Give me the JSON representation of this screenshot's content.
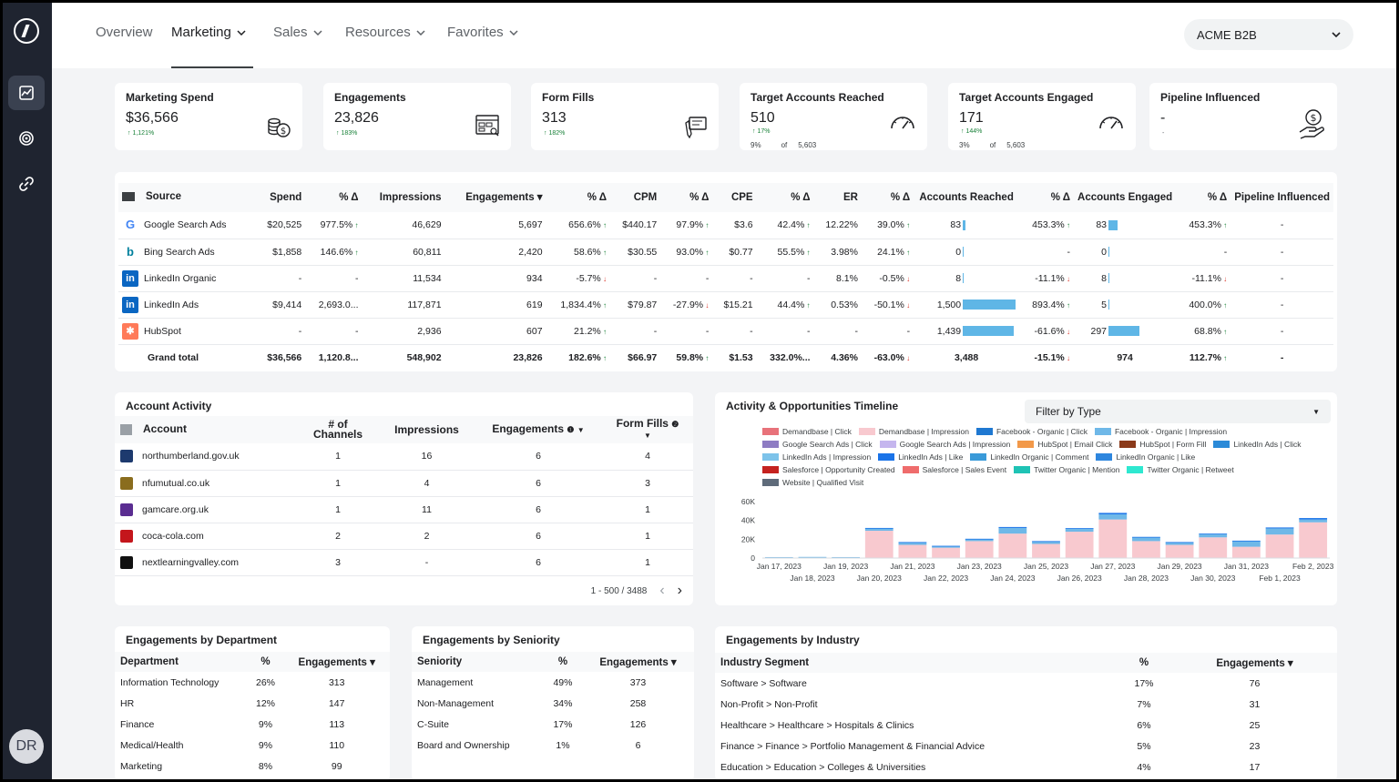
{
  "sidebar": {
    "avatar_initials": "DR",
    "icons": [
      "chart-icon",
      "target-icon",
      "link-icon"
    ]
  },
  "topnav": {
    "items": [
      {
        "label": "Overview",
        "dropdown": false
      },
      {
        "label": "Marketing",
        "dropdown": true,
        "active": true
      },
      {
        "label": "Sales",
        "dropdown": true
      },
      {
        "label": "Resources",
        "dropdown": true
      },
      {
        "label": "Favorites",
        "dropdown": true
      }
    ],
    "account_selector": "ACME B2B"
  },
  "kpis": [
    {
      "title": "Marketing Spend",
      "value": "$36,566",
      "delta": "1,121%",
      "icon": "coins-icon"
    },
    {
      "title": "Engagements",
      "value": "23,826",
      "delta": "183%",
      "icon": "dashboard-icon"
    },
    {
      "title": "Form Fills",
      "value": "313",
      "delta": "182%",
      "icon": "form-icon"
    },
    {
      "title": "Target Accounts Reached",
      "value": "510",
      "delta": "17%",
      "sub_pct": "9%",
      "sub_of": "of",
      "sub_total": "5,603",
      "icon": "gauge-icon"
    },
    {
      "title": "Target Accounts Engaged",
      "value": "171",
      "delta": "144%",
      "sub_pct": "3%",
      "sub_of": "of",
      "sub_total": "5,603",
      "icon": "gauge-icon"
    },
    {
      "title": "Pipeline Influenced",
      "value": "-",
      "delta": "-",
      "icon": "money-hand-icon"
    }
  ],
  "source_table": {
    "headers": [
      "Source",
      "Spend",
      "% Δ",
      "Impressions",
      "Engagements ▾",
      "% Δ",
      "CPM",
      "% Δ",
      "CPE",
      "% Δ",
      "ER",
      "% Δ",
      "Accounts Reached",
      "% Δ",
      "Accounts Engaged",
      "% Δ",
      "Pipeline Influenced"
    ],
    "rows": [
      {
        "source": "Google Search Ads",
        "icon": "google",
        "spend": "$20,525",
        "spend_d": "977.5%",
        "spend_dir": "up",
        "impr": "46,629",
        "eng": "5,697",
        "eng_d": "656.6%",
        "eng_dir": "up",
        "cpm": "$440.17",
        "cpm_d": "97.9%",
        "cpm_dir": "up",
        "cpe": "$3.6",
        "cpe_d": "42.4%",
        "cpe_dir": "up",
        "er": "12.22%",
        "er_d": "39.0%",
        "er_dir": "up",
        "reached": "83",
        "reached_bar": 83,
        "reached_d": "453.3%",
        "reached_dir": "up",
        "engaged": "83",
        "engaged_bar": 83,
        "engaged_d": "453.3%",
        "engaged_dir": "up",
        "pipeline": "-"
      },
      {
        "source": "Bing Search Ads",
        "icon": "bing",
        "spend": "$1,858",
        "spend_d": "146.6%",
        "spend_dir": "up",
        "impr": "60,811",
        "eng": "2,420",
        "eng_d": "58.6%",
        "eng_dir": "up",
        "cpm": "$30.55",
        "cpm_d": "93.0%",
        "cpm_dir": "up",
        "cpe": "$0.77",
        "cpe_d": "55.5%",
        "cpe_dir": "up",
        "er": "3.98%",
        "er_d": "24.1%",
        "er_dir": "up",
        "reached": "0",
        "reached_bar": 0,
        "reached_d": "-",
        "reached_dir": "",
        "engaged": "0",
        "engaged_bar": 0,
        "engaged_d": "-",
        "engaged_dir": "",
        "pipeline": "-"
      },
      {
        "source": "LinkedIn Organic",
        "icon": "linkedin",
        "spend": "-",
        "spend_d": "-",
        "spend_dir": "",
        "impr": "11,534",
        "eng": "934",
        "eng_d": "-5.7%",
        "eng_dir": "down",
        "cpm": "-",
        "cpm_d": "-",
        "cpm_dir": "",
        "cpe": "-",
        "cpe_d": "-",
        "cpe_dir": "",
        "er": "8.1%",
        "er_d": "-0.5%",
        "er_dir": "down",
        "reached": "8",
        "reached_bar": 8,
        "reached_d": "-11.1%",
        "reached_dir": "down",
        "engaged": "8",
        "engaged_bar": 8,
        "engaged_d": "-11.1%",
        "engaged_dir": "down",
        "pipeline": "-"
      },
      {
        "source": "LinkedIn Ads",
        "icon": "linkedin",
        "spend": "$9,414",
        "spend_d": "2,693.0...",
        "spend_dir": "",
        "impr": "117,871",
        "eng": "619",
        "eng_d": "1,834.4%",
        "eng_dir": "up",
        "cpm": "$79.87",
        "cpm_d": "-27.9%",
        "cpm_dir": "down",
        "cpe": "$15.21",
        "cpe_d": "44.4%",
        "cpe_dir": "up",
        "er": "0.53%",
        "er_d": "-50.1%",
        "er_dir": "down",
        "reached": "1,500",
        "reached_bar": 1500,
        "reached_d": "893.4%",
        "reached_dir": "up",
        "engaged": "5",
        "engaged_bar": 5,
        "engaged_d": "400.0%",
        "engaged_dir": "up",
        "pipeline": "-"
      },
      {
        "source": "HubSpot",
        "icon": "hubspot",
        "spend": "-",
        "spend_d": "-",
        "spend_dir": "",
        "impr": "2,936",
        "eng": "607",
        "eng_d": "21.2%",
        "eng_dir": "up",
        "cpm": "-",
        "cpm_d": "-",
        "cpm_dir": "",
        "cpe": "-",
        "cpe_d": "-",
        "cpe_dir": "",
        "er": "-",
        "er_d": "-",
        "er_dir": "",
        "reached": "1,439",
        "reached_bar": 1439,
        "reached_d": "-61.6%",
        "reached_dir": "down",
        "engaged": "297",
        "engaged_bar": 297,
        "engaged_d": "68.8%",
        "engaged_dir": "up",
        "pipeline": "-"
      }
    ],
    "total": {
      "source": "Grand total",
      "spend": "$36,566",
      "spend_d": "1,120.8...",
      "impr": "548,902",
      "eng": "23,826",
      "eng_d": "182.6%",
      "cpm": "$66.97",
      "cpm_d": "59.8%",
      "cpe": "$1.53",
      "cpe_d": "332.0%...",
      "er": "4.36%",
      "er_d": "-63.0%",
      "reached": "3,488",
      "reached_d": "-15.1%",
      "engaged": "974",
      "engaged_d": "112.7%",
      "pipeline": "-"
    }
  },
  "account_activity": {
    "title": "Account Activity",
    "headers": [
      "Account",
      "# of Channels",
      "Impressions",
      "Engagements",
      "Form Fills"
    ],
    "rows": [
      {
        "account": "northumberland.gov.uk",
        "channels": "1",
        "impressions": "16",
        "engagements": "6",
        "form_fills": "4",
        "color": "#1d3a6e"
      },
      {
        "account": "nfumutual.co.uk",
        "channels": "1",
        "impressions": "4",
        "engagements": "6",
        "form_fills": "3",
        "color": "#8a6d1e"
      },
      {
        "account": "gamcare.org.uk",
        "channels": "1",
        "impressions": "11",
        "engagements": "6",
        "form_fills": "1",
        "color": "#5a2d91"
      },
      {
        "account": "coca-cola.com",
        "channels": "2",
        "impressions": "2",
        "engagements": "6",
        "form_fills": "1",
        "color": "#c4161c"
      },
      {
        "account": "nextlearningvalley.com",
        "channels": "3",
        "impressions": "-",
        "engagements": "6",
        "form_fills": "1",
        "color": "#111111"
      }
    ],
    "pager": "1 - 500 / 3488"
  },
  "timeline": {
    "title": "Activity & Opportunities Timeline",
    "filter_label": "Filter by Type",
    "legend": [
      {
        "name": "Demandbase | Click",
        "color": "#e8727a"
      },
      {
        "name": "Demandbase | Impression",
        "color": "#f8c9cf"
      },
      {
        "name": "Facebook - Organic | Click",
        "color": "#1f78d1"
      },
      {
        "name": "Facebook - Organic | Impression",
        "color": "#6fb8e8"
      },
      {
        "name": "Google Search Ads | Click",
        "color": "#8e7cc3"
      },
      {
        "name": "Google Search Ads | Impression",
        "color": "#c5b6ee"
      },
      {
        "name": "HubSpot | Email Click",
        "color": "#f2994a"
      },
      {
        "name": "HubSpot | Form Fill",
        "color": "#8b3a1a"
      },
      {
        "name": "LinkedIn Ads | Click",
        "color": "#2b8ad8"
      },
      {
        "name": "LinkedIn Ads | Impression",
        "color": "#7dc3ea"
      },
      {
        "name": "LinkedIn Ads | Like",
        "color": "#1a73e8"
      },
      {
        "name": "LinkedIn Organic | Comment",
        "color": "#3a9ad9"
      },
      {
        "name": "LinkedIn Organic | Like",
        "color": "#2e86de"
      },
      {
        "name": "Salesforce | Opportunity Created",
        "color": "#c5221f"
      },
      {
        "name": "Salesforce | Sales Event",
        "color": "#ef6c6c"
      },
      {
        "name": "Twitter Organic | Mention",
        "color": "#1fc3b5"
      },
      {
        "name": "Twitter Organic | Retweet",
        "color": "#2ee8d0"
      },
      {
        "name": "Website | Qualified Visit",
        "color": "#5f6b7a"
      }
    ]
  },
  "chart_data": {
    "type": "bar",
    "stacked": true,
    "categories": [
      "Jan 17, 2023",
      "Jan 18, 2023",
      "Jan 19, 2023",
      "Jan 20, 2023",
      "Jan 21, 2023",
      "Jan 22, 2023",
      "Jan 23, 2023",
      "Jan 24, 2023",
      "Jan 25, 2023",
      "Jan 26, 2023",
      "Jan 27, 2023",
      "Jan 28, 2023",
      "Jan 29, 2023",
      "Jan 30, 2023",
      "Jan 31, 2023",
      "Feb 1, 2023",
      "Feb 2, 2023"
    ],
    "series": [
      {
        "name": "Demandbase | Impression",
        "values": [
          0,
          0,
          0,
          29000,
          14000,
          11000,
          18000,
          26000,
          15000,
          28000,
          41000,
          18000,
          14000,
          22000,
          12000,
          25000,
          38000
        ]
      },
      {
        "name": "Facebook - Organic | Impression",
        "values": [
          1000,
          1200,
          1000,
          2500,
          2500,
          1500,
          2000,
          6000,
          2500,
          3000,
          5500,
          4000,
          2500,
          3500,
          6000,
          6500,
          3000
        ]
      },
      {
        "name": "LinkedIn Ads | Like",
        "values": [
          0,
          0,
          0,
          500,
          500,
          500,
          500,
          1000,
          500,
          800,
          1500,
          500,
          500,
          500,
          500,
          1000,
          1500
        ]
      }
    ],
    "ylim": [
      0,
      60000
    ],
    "yticks": [
      "0",
      "20K",
      "40K",
      "60K"
    ],
    "xticks_row1": [
      "Jan 17, 2023",
      "Jan 19, 2023",
      "Jan 21, 2023",
      "Jan 23, 2023",
      "Jan 25, 2023",
      "Jan 27, 2023",
      "Jan 29, 2023",
      "Jan 31, 2023",
      "Feb 2, 2023"
    ],
    "xticks_row2": [
      "Jan 18, 2023",
      "Jan 20, 2023",
      "Jan 22, 2023",
      "Jan 24, 2023",
      "Jan 26, 2023",
      "Jan 28, 2023",
      "Jan 30, 2023",
      "Feb 1, 2023"
    ]
  },
  "by_department": {
    "title": "Engagements by Department",
    "headers": [
      "Department",
      "%",
      "Engagements ▾"
    ],
    "rows": [
      [
        "Information Technology",
        "26%",
        "313"
      ],
      [
        "HR",
        "12%",
        "147"
      ],
      [
        "Finance",
        "9%",
        "113"
      ],
      [
        "Medical/Health",
        "9%",
        "110"
      ],
      [
        "Marketing",
        "8%",
        "99"
      ]
    ]
  },
  "by_seniority": {
    "title": "Engagements by Seniority",
    "headers": [
      "Seniority",
      "%",
      "Engagements ▾"
    ],
    "rows": [
      [
        "Management",
        "49%",
        "373"
      ],
      [
        "Non-Management",
        "34%",
        "258"
      ],
      [
        "C-Suite",
        "17%",
        "126"
      ],
      [
        "Board and Ownership",
        "1%",
        "6"
      ]
    ]
  },
  "by_industry": {
    "title": "Engagements by Industry",
    "headers": [
      "Industry Segment",
      "%",
      "Engagements ▾"
    ],
    "rows": [
      [
        "Software > Software",
        "17%",
        "76"
      ],
      [
        "Non-Profit > Non-Profit",
        "7%",
        "31"
      ],
      [
        "Healthcare > Healthcare > Hospitals & Clinics",
        "6%",
        "25"
      ],
      [
        "Finance > Finance > Portfolio Management & Financial Advice",
        "5%",
        "23"
      ],
      [
        "Education > Education > Colleges & Universities",
        "4%",
        "17"
      ]
    ]
  }
}
